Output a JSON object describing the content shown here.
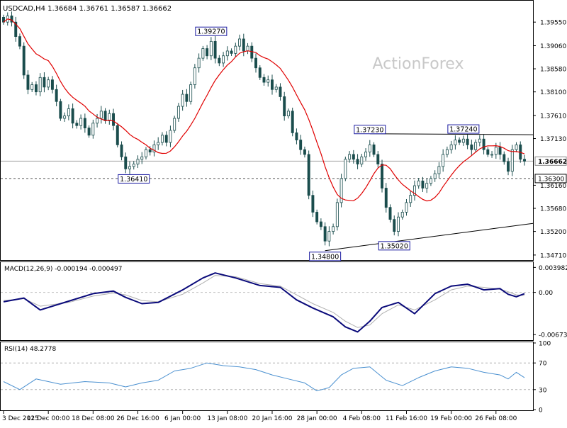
{
  "header": {
    "symbol": "USDCAD,H4",
    "ohlc": "1.36684 1.36761 1.36587 1.36662"
  },
  "watermark": "ActionForex",
  "colors": {
    "candle": "#1a4d4d",
    "sma": "#e00000",
    "macd_main": "#0a0a7a",
    "macd_signal": "#b0b0b0",
    "rsi": "#4a90d0",
    "grid": "#c8c8c8",
    "label_border": "#1a1aa0"
  },
  "chart_data": [
    {
      "type": "candlestick",
      "name": "price",
      "ylim": [
        1.3462,
        1.3998
      ],
      "y_ticks": [
        "1.39550",
        "1.39060",
        "1.38580",
        "1.38100",
        "1.37610",
        "1.37130",
        "1.36160",
        "1.35680",
        "1.35200",
        "1.34710"
      ],
      "price_labels": [
        {
          "text": "1.36662",
          "value": 1.36662,
          "style": "current"
        },
        {
          "text": "1.36300",
          "value": 1.363,
          "style": "support"
        }
      ],
      "annotations": [
        {
          "text": "1.39270",
          "value": 1.3927,
          "index": 51,
          "placement": "above"
        },
        {
          "text": "1.36410",
          "value": 1.3641,
          "index": 32,
          "placement": "below"
        },
        {
          "text": "1.37230",
          "value": 1.3723,
          "index": 90,
          "placement": "above"
        },
        {
          "text": "1.34800",
          "value": 1.348,
          "index": 79,
          "placement": "below"
        },
        {
          "text": "1.35020",
          "value": 1.3502,
          "index": 96,
          "placement": "below"
        },
        {
          "text": "1.37240",
          "value": 1.3724,
          "index": 113,
          "placement": "above"
        }
      ],
      "trendlines": [
        {
          "from": {
            "index": 90,
            "value": 1.3723
          },
          "to": {
            "index": 128,
            "value": 1.3721
          }
        },
        {
          "from": {
            "index": 79,
            "value": 1.348
          },
          "to": {
            "index": 128,
            "value": 1.3537
          }
        }
      ],
      "horizontal_lines": [
        {
          "value": 1.36662,
          "style": "solid"
        },
        {
          "value": 1.363,
          "style": "dashed"
        }
      ],
      "sma_name": "SMA",
      "closes": [
        1.3955,
        1.3968,
        1.3955,
        1.3925,
        1.3905,
        1.3845,
        1.3815,
        1.3825,
        1.381,
        1.384,
        1.382,
        1.3835,
        1.3815,
        1.379,
        1.3755,
        1.376,
        1.3775,
        1.3745,
        1.374,
        1.3755,
        1.3735,
        1.372,
        1.3745,
        1.3755,
        1.377,
        1.375,
        1.3765,
        1.374,
        1.37,
        1.3675,
        1.365,
        1.3655,
        1.366,
        1.367,
        1.3675,
        1.369,
        1.3685,
        1.37,
        1.3705,
        1.372,
        1.3705,
        1.373,
        1.3755,
        1.378,
        1.3805,
        1.379,
        1.3825,
        1.386,
        1.388,
        1.39,
        1.3885,
        1.3915,
        1.388,
        1.387,
        1.3885,
        1.3895,
        1.389,
        1.3905,
        1.392,
        1.3895,
        1.3905,
        1.388,
        1.386,
        1.384,
        1.383,
        1.3835,
        1.3815,
        1.382,
        1.38,
        1.376,
        1.377,
        1.3725,
        1.371,
        1.369,
        1.368,
        1.3595,
        1.356,
        1.354,
        1.353,
        1.35,
        1.352,
        1.353,
        1.358,
        1.363,
        1.367,
        1.368,
        1.367,
        1.366,
        1.3675,
        1.3685,
        1.37,
        1.368,
        1.366,
        1.361,
        1.357,
        1.3545,
        1.352,
        1.355,
        1.356,
        1.358,
        1.3595,
        1.3615,
        1.3625,
        1.361,
        1.362,
        1.363,
        1.364,
        1.3655,
        1.368,
        1.369,
        1.37,
        1.371,
        1.3705,
        1.3712,
        1.37,
        1.369,
        1.3705,
        1.3712,
        1.369,
        1.368,
        1.368,
        1.3695,
        1.368,
        1.3665,
        1.3645,
        1.369,
        1.37,
        1.367,
        1.3666
      ]
    },
    {
      "type": "line",
      "name": "MACD(12,26,9)",
      "values_label": "-0.000194 -0.000497",
      "ylim": [
        -0.0075,
        0.0047
      ],
      "y_ticks": [
        "0.003982",
        "0.00",
        "-0.006737"
      ],
      "y_tick_values": [
        0.003982,
        0.0,
        -0.006737
      ],
      "x": [
        0,
        5,
        9,
        16,
        22,
        27,
        30,
        34,
        38,
        44,
        49,
        52,
        57,
        63,
        68,
        72,
        76,
        81,
        84,
        87,
        90,
        93,
        97,
        101,
        106,
        110,
        114,
        118,
        122,
        124,
        126,
        128
      ],
      "series": [
        {
          "values": [
            -0.0015,
            -0.0009,
            -0.0028,
            -0.0014,
            -0.0002,
            0.0002,
            -0.0008,
            -0.0018,
            -0.0016,
            0.0004,
            0.0023,
            0.0031,
            0.0023,
            0.0011,
            0.0008,
            -0.0012,
            -0.0025,
            -0.0039,
            -0.0055,
            -0.0063,
            -0.0046,
            -0.0024,
            -0.0016,
            -0.0034,
            -0.0002,
            0.001,
            0.0013,
            0.0004,
            0.0006,
            -0.0003,
            -0.0007,
            -0.0002
          ]
        },
        {
          "values": [
            -0.0013,
            -0.001,
            -0.0022,
            -0.0016,
            -0.0006,
            -0.0001,
            -0.0004,
            -0.0013,
            -0.0015,
            -0.0003,
            0.0015,
            0.0027,
            0.0025,
            0.0014,
            0.001,
            -0.0004,
            -0.0018,
            -0.0032,
            -0.0046,
            -0.0056,
            -0.0052,
            -0.0034,
            -0.002,
            -0.0028,
            -0.0012,
            0.0004,
            0.001,
            0.0008,
            0.0005,
            0.0001,
            -0.0004,
            -0.0005
          ]
        }
      ]
    },
    {
      "type": "line",
      "name": "RSI(14)",
      "values_label": "48.2778",
      "ylim": [
        0,
        100
      ],
      "y_ticks": [
        "100",
        "70",
        "30",
        "0"
      ],
      "y_tick_values": [
        100,
        70,
        30,
        0
      ],
      "levels": [
        70,
        30
      ],
      "x": [
        0,
        4,
        8,
        14,
        20,
        26,
        30,
        34,
        38,
        42,
        46,
        50,
        54,
        58,
        62,
        66,
        70,
        74,
        77,
        80,
        83,
        86,
        90,
        94,
        98,
        102,
        106,
        110,
        114,
        118,
        122,
        124,
        126,
        128
      ],
      "series": [
        {
          "values": [
            42,
            30,
            46,
            38,
            42,
            40,
            34,
            40,
            44,
            58,
            62,
            70,
            66,
            64,
            60,
            52,
            46,
            40,
            28,
            33,
            52,
            62,
            64,
            44,
            36,
            48,
            58,
            64,
            62,
            56,
            52,
            46,
            56,
            48
          ]
        }
      ]
    }
  ],
  "x_axis": {
    "tick_labels": [
      "3 Dec 2025",
      "11 Dec 00:00",
      "18 Dec 08:00",
      "26 Dec 16:00",
      "6 Jan 00:00",
      "13 Jan 08:00",
      "20 Jan 16:00",
      "28 Jan 00:00",
      "4 Feb 08:00",
      "11 Feb 16:00",
      "19 Feb 00:00",
      "26 Feb 08:00"
    ],
    "tick_index": [
      0,
      11,
      22,
      33,
      44,
      55,
      66,
      77,
      88,
      99,
      110,
      121
    ]
  }
}
